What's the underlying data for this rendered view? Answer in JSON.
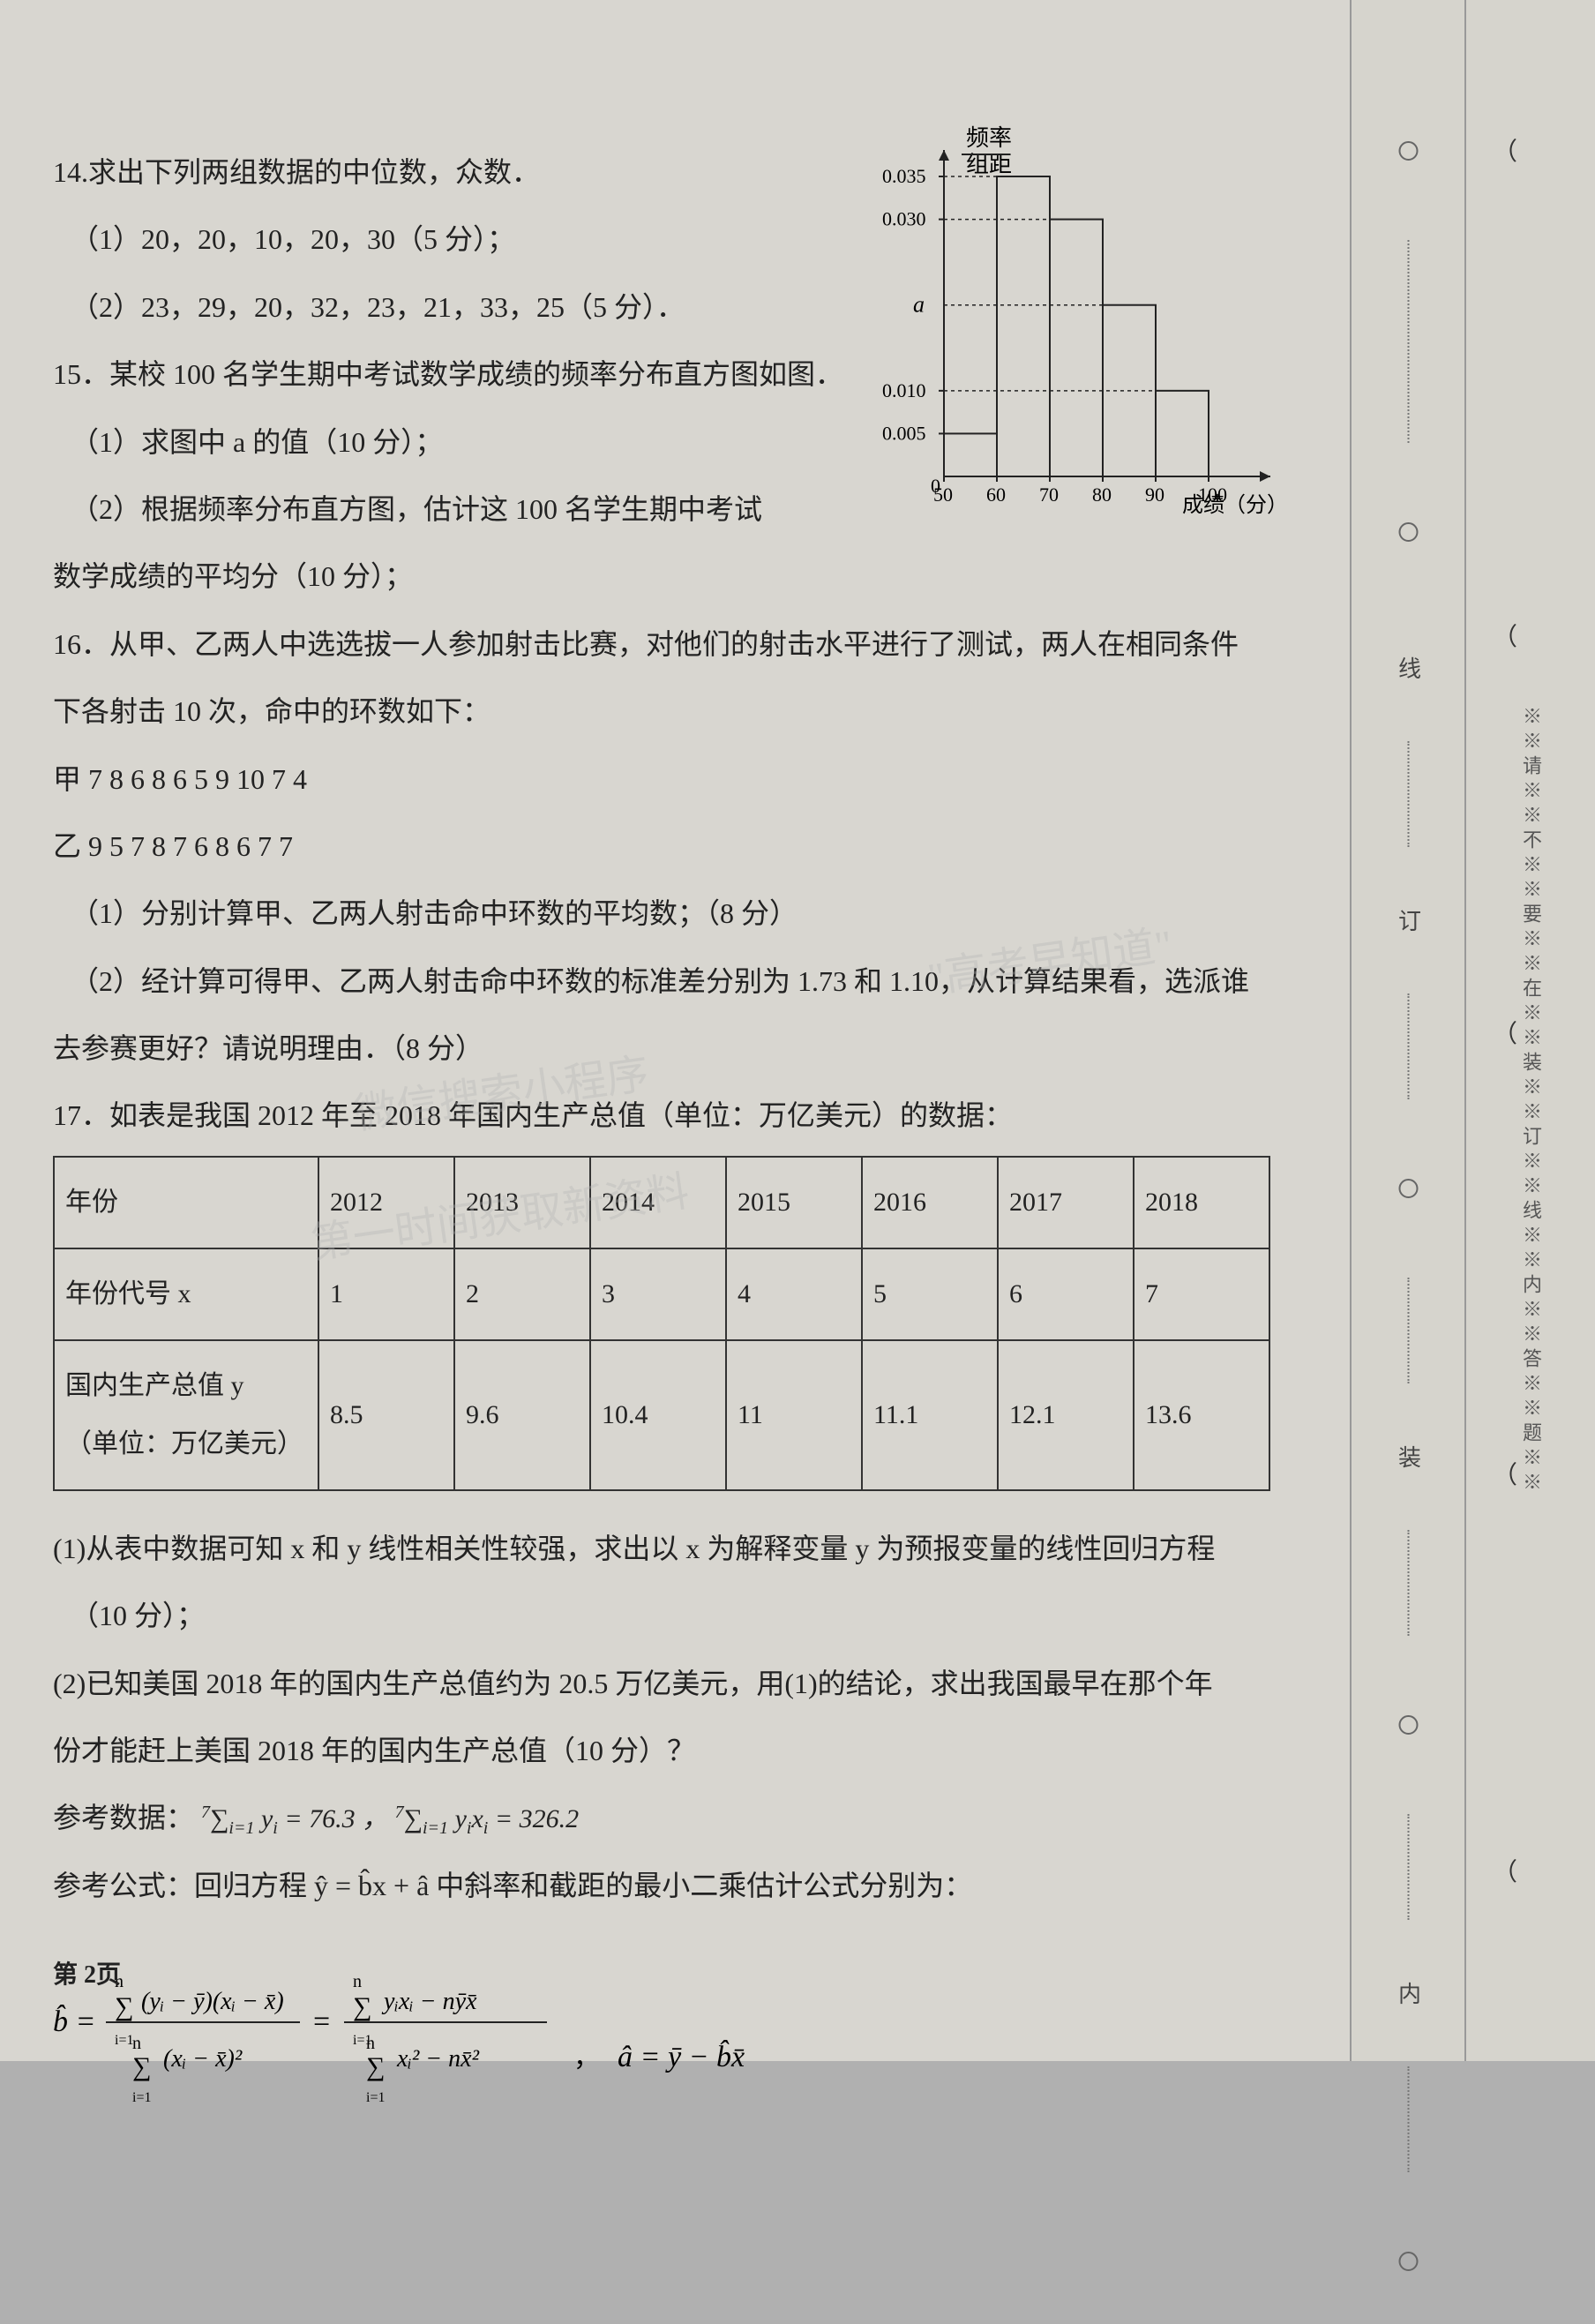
{
  "q14": {
    "stem": "14.求出下列两组数据的中位数，众数．",
    "part1": "（1）20，20，10，20，30（5 分）；",
    "part2": "（2）23，29，20，32，23，21，33，25（5 分）．"
  },
  "q15": {
    "stem": "15．某校 100 名学生期中考试数学成绩的频率分布直方图如图．",
    "part1": "（1）求图中 a 的值（10 分）；",
    "part2": "（2）根据频率分布直方图，估计这 100 名学生期中考试",
    "part2b": "数学成绩的平均分（10 分）；"
  },
  "histogram": {
    "ylabel_top": "频率",
    "ylabel_bottom": "组距",
    "xlabel": "成绩（分）",
    "a_label": "a",
    "xticks": [
      "50",
      "60",
      "70",
      "80",
      "90",
      "100"
    ],
    "yticks": [
      "0.005",
      "0.010",
      "0.030",
      "0.035"
    ],
    "bars": [
      {
        "x": 50,
        "h": 0.005
      },
      {
        "x": 60,
        "h": 0.035
      },
      {
        "x": 70,
        "h": 0.03
      },
      {
        "x": 80,
        "h": 0.02
      },
      {
        "x": 90,
        "h": 0.01
      }
    ],
    "a_y": 0.02,
    "axis_color": "#222",
    "bar_stroke": "#222",
    "bar_fill": "none",
    "dash": "4,4"
  },
  "q16": {
    "stem": "16．从甲、乙两人中选选拔一人参加射击比赛，对他们的射击水平进行了测试，两人在相同条件",
    "stem2": "下各射击 10 次，命中的环数如下：",
    "jia": "甲 7 8 6 8 6 5 9 10 7 4",
    "yi": "乙 9 5 7 8 7 6 8 6 7 7",
    "part1": "（1）分别计算甲、乙两人射击命中环数的平均数；（8 分）",
    "part2": "（2）经计算可得甲、乙两人射击命中环数的标准差分别为 1.73 和 1.10，从计算结果看，选派谁",
    "part2b": "去参赛更好？请说明理由．（8 分）"
  },
  "q17": {
    "stem": "17．如表是我国 2012 年至 2018 年国内生产总值（单位：万亿美元）的数据：",
    "table": {
      "headers": [
        "年份",
        "2012",
        "2013",
        "2014",
        "2015",
        "2016",
        "2017",
        "2018"
      ],
      "row_x_label": "年份代号 x",
      "row_x": [
        "1",
        "2",
        "3",
        "4",
        "5",
        "6",
        "7"
      ],
      "row_y_label_l1": "国内生产总值 y",
      "row_y_label_l2": "（单位：万亿美元）",
      "row_y": [
        "8.5",
        "9.6",
        "10.4",
        "11",
        "11.1",
        "12.1",
        "13.6"
      ]
    },
    "p1": "(1)从表中数据可知 x 和 y 线性相关性较强，求出以 x 为解释变量 y 为预报变量的线性回归方程",
    "p1b": "（10 分）；",
    "p2": "(2)已知美国 2018 年的国内生产总值约为 20.5 万亿美元，用(1)的结论，求出我国最早在那个年",
    "p2b": "份才能赶上美国 2018 年的国内生产总值（10 分）？",
    "refdata_label": "参考数据：",
    "refdata_f1": "∑ yᵢ = 76.3",
    "refdata_f2": "∑ yᵢxᵢ = 326.2",
    "refdata_lim": "i=1",
    "refdata_top": "7",
    "refformula_label": "参考公式：回归方程 ŷ = b̂x + â 中斜率和截距的最小二乘估计公式分别为：",
    "bhat_formula": "b̂ = [∑(yᵢ−ȳ)(xᵢ−x̄)] / [∑(xᵢ−x̄)²] = [∑yᵢxᵢ − nȳx̄] / [∑xᵢ² − nx̄²]",
    "ahat_formula": "â = ȳ − b̂x̄"
  },
  "page_number": "第 2页",
  "binding": {
    "labels": [
      "线",
      "订",
      "装",
      "内"
    ],
    "sealtext": "※※请※※不※※要※※在※※装※※订※※线※※内※※答※※题※※"
  },
  "watermark1": "微信搜索小程序",
  "watermark2": "\"高考早知道\"",
  "watermark3": "第一时间获取新资料"
}
